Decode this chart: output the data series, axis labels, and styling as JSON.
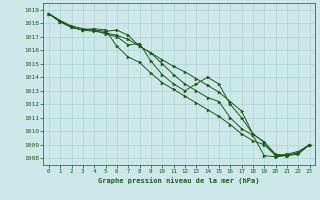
{
  "title": "Graphe pression niveau de la mer (hPa)",
  "bg_color": "#cce8e8",
  "grid_color_minor": "#b0d0d0",
  "grid_color_major": "#88bbbb",
  "line_color": "#1a5c1a",
  "xlim": [
    -0.5,
    23.5
  ],
  "ylim": [
    1007.5,
    1019.5
  ],
  "yticks": [
    1008,
    1009,
    1010,
    1011,
    1012,
    1013,
    1014,
    1015,
    1016,
    1017,
    1018,
    1019
  ],
  "xticks": [
    0,
    1,
    2,
    3,
    4,
    5,
    6,
    7,
    8,
    9,
    10,
    11,
    12,
    13,
    14,
    15,
    16,
    17,
    18,
    19,
    20,
    21,
    22,
    23
  ],
  "series": [
    [
      1018.7,
      1018.2,
      1017.7,
      1017.5,
      1017.4,
      1017.3,
      1017.1,
      1016.8,
      1016.3,
      1015.8,
      1015.0,
      1014.2,
      1013.5,
      1013.0,
      1012.5,
      1012.2,
      1011.0,
      1010.2,
      1009.7,
      1008.2,
      1008.1,
      1008.2,
      1008.3,
      1009.0
    ],
    [
      1018.7,
      1018.2,
      1017.8,
      1017.6,
      1017.5,
      1017.2,
      1017.0,
      1016.4,
      1016.5,
      1015.2,
      1014.2,
      1013.5,
      1013.0,
      1013.5,
      1014.0,
      1013.5,
      1012.0,
      1011.0,
      1009.8,
      1009.2,
      1008.3,
      1008.2,
      1008.4,
      1009.0
    ],
    [
      1018.7,
      1018.1,
      1017.7,
      1017.5,
      1017.5,
      1017.4,
      1017.5,
      1017.1,
      1016.3,
      1015.8,
      1015.3,
      1014.8,
      1014.4,
      1013.9,
      1013.4,
      1012.9,
      1012.2,
      1011.5,
      1009.8,
      1009.2,
      1008.2,
      1008.2,
      1008.4,
      1009.0
    ],
    [
      1018.7,
      1018.1,
      1017.7,
      1017.5,
      1017.6,
      1017.5,
      1016.3,
      1015.5,
      1015.1,
      1014.3,
      1013.6,
      1013.1,
      1012.6,
      1012.1,
      1011.6,
      1011.1,
      1010.5,
      1009.8,
      1009.3,
      1009.0,
      1008.2,
      1008.3,
      1008.5,
      1009.0
    ]
  ]
}
